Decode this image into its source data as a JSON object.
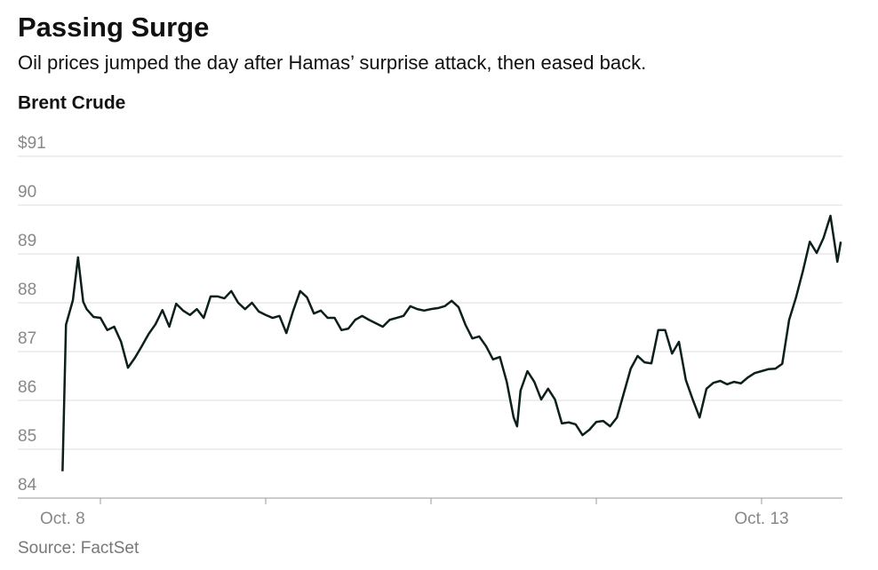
{
  "chart_data": {
    "type": "line",
    "title": "Passing Surge",
    "subtitle": "Oil prices jumped the day after Hamas’ surprise attack, then eased back.",
    "y_label": "Brent Crude",
    "source": "Source: FactSet",
    "ylim": [
      84,
      91
    ],
    "yticks": [
      84,
      85,
      86,
      87,
      88,
      89,
      90,
      {
        "value": 91,
        "label": "$91"
      }
    ],
    "xlim": [
      12,
      132
    ],
    "xticks": [
      24,
      48,
      72,
      96,
      120
    ],
    "x_tick_labels": [
      {
        "value": 18.5,
        "label": "Oct. 8"
      },
      {
        "value": 120,
        "label": "Oct. 13"
      }
    ],
    "grid": true,
    "series": [
      {
        "name": "Brent Crude",
        "color": "#0d1f1c",
        "x": [
          18.5,
          19,
          20,
          20.75,
          21.5,
          22,
          23,
          24,
          25,
          26,
          27,
          28,
          29,
          30,
          31,
          32,
          33,
          34,
          35,
          36,
          37,
          38,
          39,
          40,
          41,
          42,
          43,
          44,
          45,
          46,
          47,
          48,
          49,
          50,
          51,
          52,
          53,
          54,
          55,
          56,
          57,
          58,
          59,
          60,
          61,
          62,
          63,
          64,
          65,
          66,
          67,
          68,
          69,
          70,
          71,
          72,
          73,
          74,
          75,
          76,
          77,
          78,
          79,
          80,
          81,
          82,
          83,
          84,
          84.5,
          85,
          86,
          87,
          88,
          89,
          90,
          91,
          92,
          93,
          94,
          95,
          96,
          97,
          98,
          99,
          100,
          101,
          102,
          103,
          104,
          105,
          106,
          107,
          108,
          109,
          110,
          111,
          112,
          113,
          114,
          115,
          116,
          117,
          118,
          119,
          120,
          121,
          122,
          123,
          124,
          125,
          126,
          127,
          128,
          129,
          130,
          131,
          131.5
        ],
        "values": [
          84.55,
          87.55,
          88.05,
          88.93,
          88.02,
          87.87,
          87.71,
          87.69,
          87.44,
          87.51,
          87.2,
          86.67,
          86.87,
          87.11,
          87.36,
          87.56,
          87.85,
          87.51,
          87.98,
          87.84,
          87.75,
          87.87,
          87.69,
          88.13,
          88.13,
          88.09,
          88.24,
          88.0,
          87.87,
          88.0,
          87.82,
          87.75,
          87.69,
          87.73,
          87.38,
          87.84,
          88.24,
          88.11,
          87.78,
          87.84,
          87.69,
          87.69,
          87.44,
          87.47,
          87.65,
          87.73,
          87.65,
          87.58,
          87.51,
          87.65,
          87.69,
          87.73,
          87.93,
          87.87,
          87.84,
          87.87,
          87.89,
          87.93,
          88.04,
          87.91,
          87.55,
          87.27,
          87.31,
          87.11,
          86.84,
          86.89,
          86.38,
          85.65,
          85.47,
          86.2,
          86.6,
          86.38,
          86.02,
          86.24,
          86.02,
          85.53,
          85.55,
          85.51,
          85.29,
          85.4,
          85.56,
          85.58,
          85.47,
          85.65,
          86.15,
          86.65,
          86.91,
          86.78,
          86.76,
          87.44,
          87.44,
          86.96,
          87.2,
          86.42,
          86.02,
          85.65,
          86.24,
          86.36,
          86.4,
          86.33,
          86.38,
          86.35,
          86.47,
          86.56,
          86.6,
          86.64,
          86.65,
          86.75,
          87.65,
          88.11,
          88.65,
          89.25,
          89.02,
          89.33,
          89.78,
          88.84,
          89.25
        ]
      }
    ]
  }
}
